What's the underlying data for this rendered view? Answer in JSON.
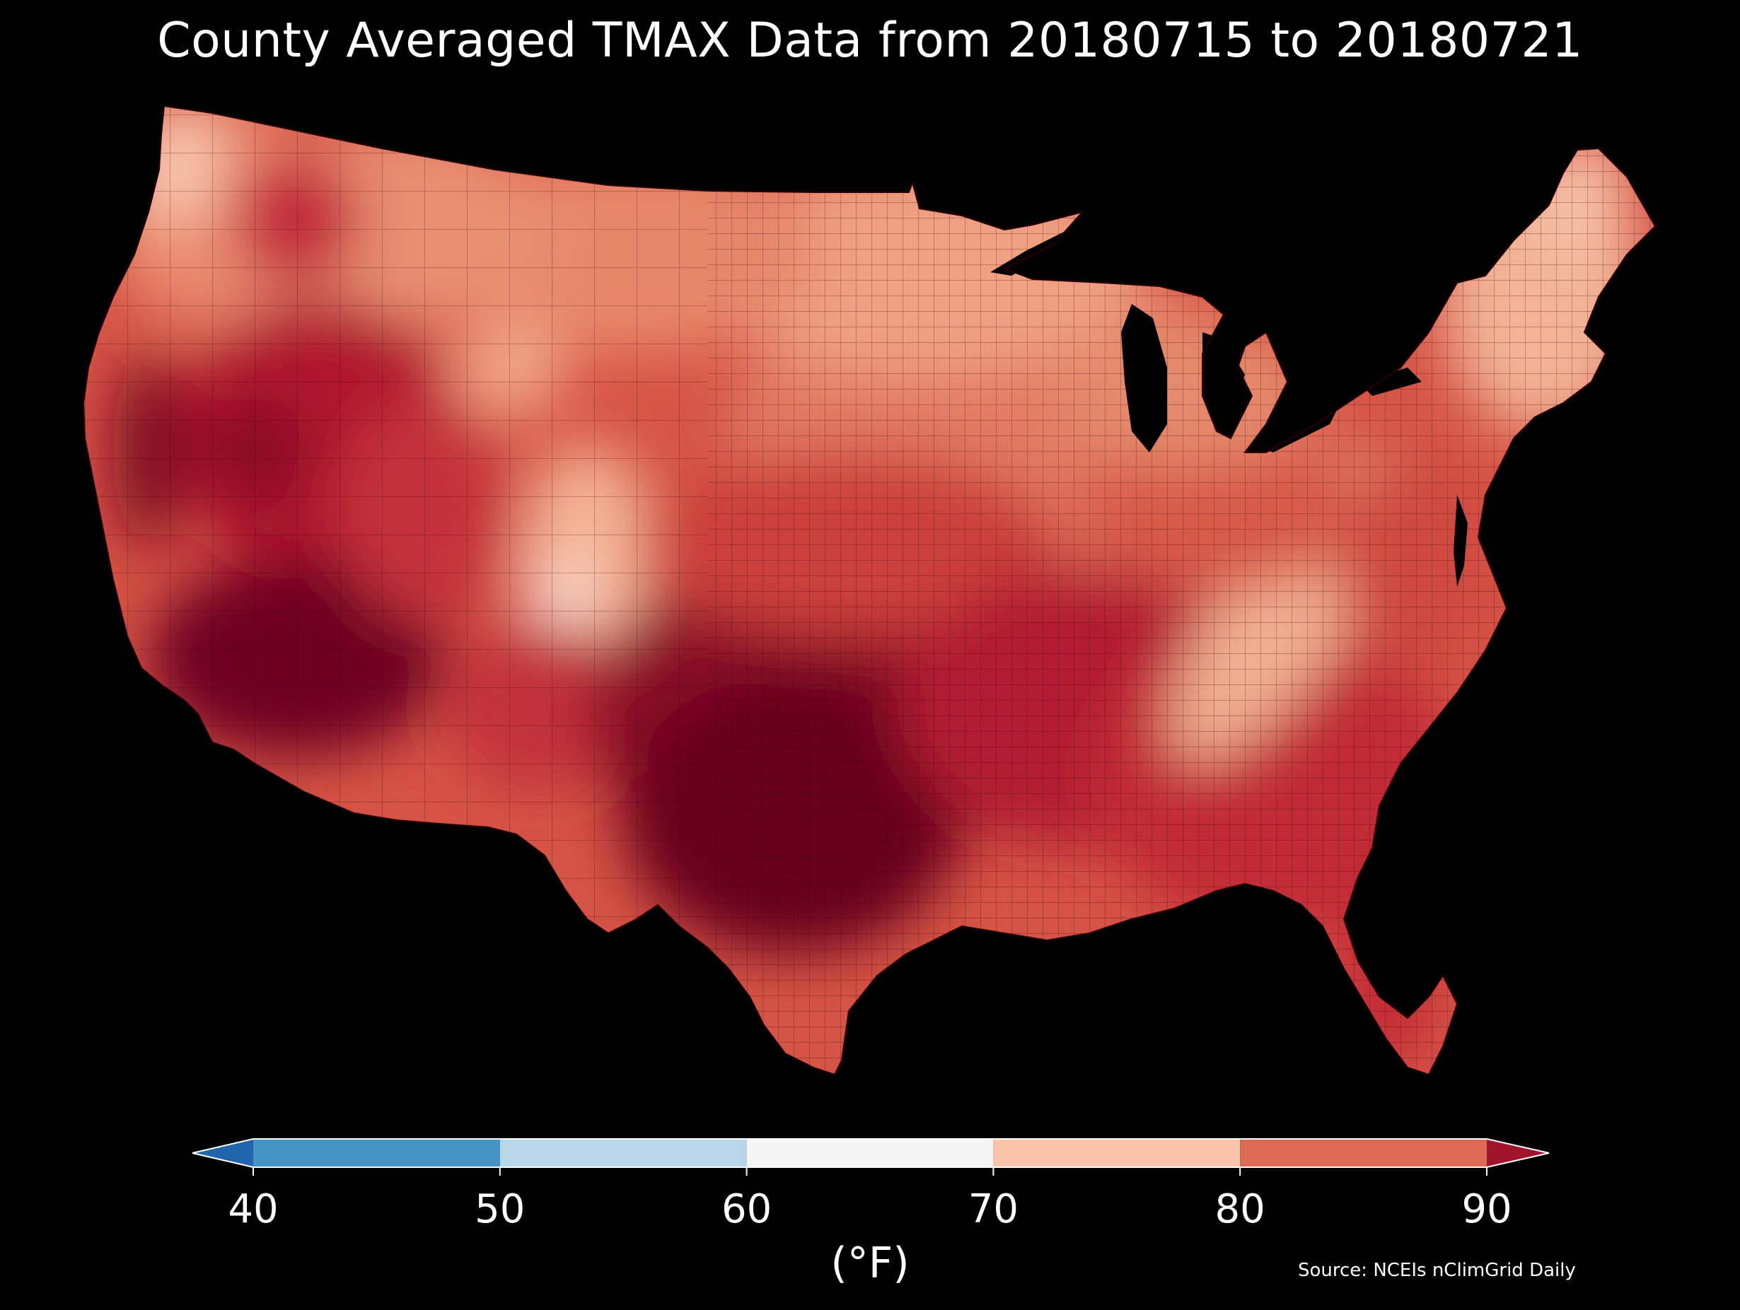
{
  "title": "County Averaged TMAX Data from 20180715 to 20180721",
  "source": "Source: NCEIs nClimGrid Daily",
  "colorbar": {
    "units": "(°F)",
    "ticks": [
      "40",
      "50",
      "60",
      "70",
      "80",
      "90"
    ],
    "bins": [
      {
        "from": 40,
        "to": 50,
        "color": "#4393c3"
      },
      {
        "from": 50,
        "to": 60,
        "color": "#b7d6e9"
      },
      {
        "from": 60,
        "to": 70,
        "color": "#f5f5f5"
      },
      {
        "from": 70,
        "to": 80,
        "color": "#f9c4a8"
      },
      {
        "from": 80,
        "to": 90,
        "color": "#dd6a55"
      }
    ],
    "under_color": "#2166ac",
    "over_color": "#a2142c"
  },
  "map": {
    "background": "#000000",
    "regions": [
      {
        "name": "texas-core",
        "tmax_band": "90+",
        "color": "#67001f"
      },
      {
        "name": "southern-plains",
        "tmax_band": "90+",
        "color": "#8b0d26"
      },
      {
        "name": "desert-southwest",
        "tmax_band": "90+",
        "color": "#6e0420"
      },
      {
        "name": "great-basin",
        "tmax_band": "85-90",
        "color": "#b0182e"
      },
      {
        "name": "southeast",
        "tmax_band": "85-90",
        "color": "#c22b35"
      },
      {
        "name": "mid-south",
        "tmax_band": "85-90",
        "color": "#b31e31"
      },
      {
        "name": "central-plains",
        "tmax_band": "80-85",
        "color": "#d0463d"
      },
      {
        "name": "midwest",
        "tmax_band": "80-85",
        "color": "#e0735c"
      },
      {
        "name": "upper-midwest",
        "tmax_band": "75-80",
        "color": "#f0a081"
      },
      {
        "name": "northern-rockies",
        "tmax_band": "75-80",
        "color": "#e98c6e"
      },
      {
        "name": "pacific-northwest",
        "tmax_band": "75-80",
        "color": "#ee9d7f"
      },
      {
        "name": "new-england",
        "tmax_band": "70-80",
        "color": "#f2b495"
      },
      {
        "name": "appalachians",
        "tmax_band": "70-80",
        "color": "#f6c0a2"
      },
      {
        "name": "colorado-rockies",
        "tmax_band": "70-80",
        "color": "#f7c8ae"
      },
      {
        "name": "colorado-high-peaks",
        "tmax_band": "60-70",
        "color": "#fbe9df"
      },
      {
        "name": "northwest-coast",
        "tmax_band": "70-80",
        "color": "#fad7c4"
      },
      {
        "name": "central-valley-ca",
        "tmax_band": "90+",
        "color": "#7b0823"
      }
    ]
  }
}
